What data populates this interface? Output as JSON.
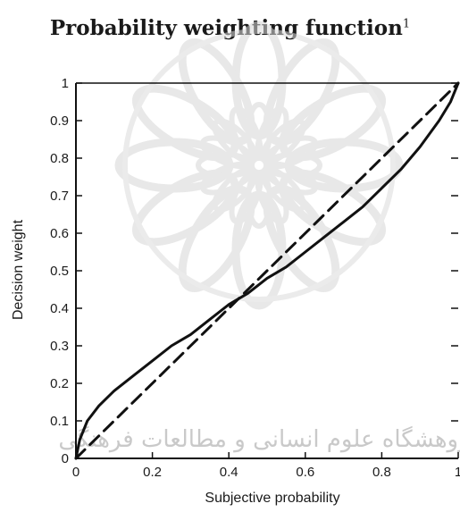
{
  "chart_data": {
    "type": "line",
    "title": "Probability weighting function",
    "title_footnote": "1",
    "xlabel": "Subjective probability",
    "ylabel": "Decision weight",
    "xlim": [
      0,
      1
    ],
    "ylim": [
      0,
      1
    ],
    "x_ticks": [
      0,
      0.2,
      0.4,
      0.6,
      0.8,
      1
    ],
    "x_tick_labels": [
      "0",
      "0.2",
      "0.4",
      "0.6",
      "0.8",
      "1"
    ],
    "y_ticks": [
      0,
      0.1,
      0.2,
      0.3,
      0.4,
      0.5,
      0.6,
      0.7,
      0.8,
      0.9,
      1
    ],
    "y_tick_labels": [
      "0",
      "0.1",
      "0.2",
      "0.3",
      "0.4",
      "0.5",
      "0.6",
      "0.7",
      "0.8",
      "0.9",
      "1"
    ],
    "grid": false,
    "legend": "none",
    "series": [
      {
        "style": "solid",
        "color": "#111111",
        "x": [
          0,
          0.01,
          0.03,
          0.06,
          0.1,
          0.15,
          0.2,
          0.25,
          0.3,
          0.35,
          0.4,
          0.45,
          0.5,
          0.55,
          0.6,
          0.65,
          0.7,
          0.75,
          0.8,
          0.85,
          0.9,
          0.95,
          0.98,
          1
        ],
        "y": [
          0,
          0.05,
          0.1,
          0.14,
          0.18,
          0.22,
          0.26,
          0.3,
          0.33,
          0.37,
          0.41,
          0.44,
          0.48,
          0.51,
          0.55,
          0.59,
          0.63,
          0.67,
          0.72,
          0.77,
          0.83,
          0.9,
          0.95,
          1
        ]
      },
      {
        "style": "dashed",
        "color": "#111111",
        "x": [
          0,
          1
        ],
        "y": [
          0,
          1
        ]
      }
    ]
  },
  "watermark": {
    "text": "پژوهشگاه علوم انسانی و مطالعات فرهنگی",
    "color": "#d0d0d0"
  }
}
